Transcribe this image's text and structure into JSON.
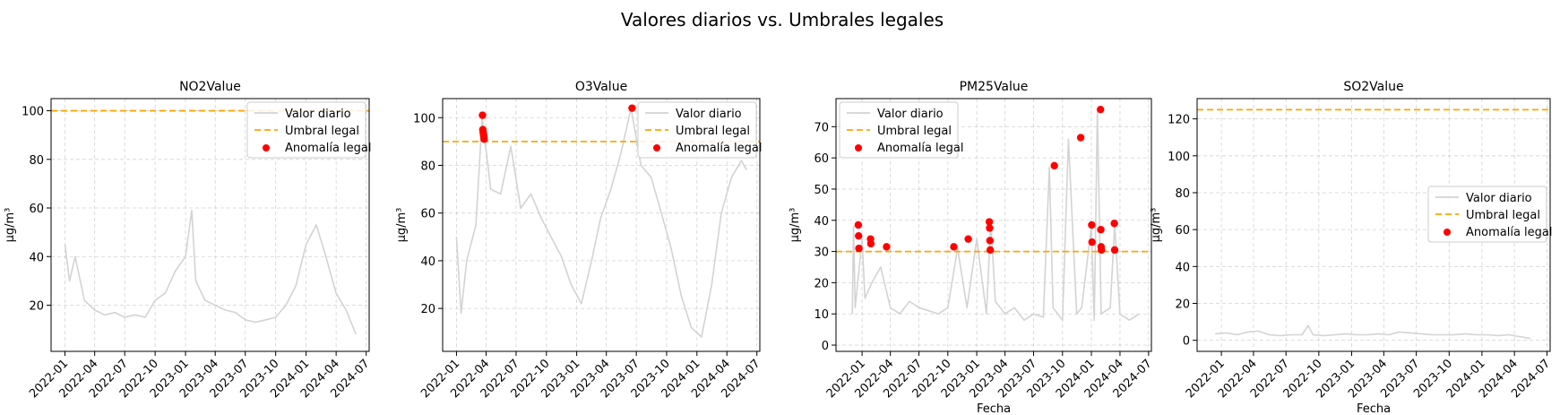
{
  "figure": {
    "suptitle": "Valores diarios vs. Umbrales legales"
  },
  "colors": {
    "series": "#d3d3d3",
    "threshold": "#ffa500",
    "anomaly": "#ff0000",
    "grid": "#b0b0b0",
    "axis": "#000000"
  },
  "x_axis": {
    "ticks": [
      "2022-01",
      "2022-04",
      "2022-07",
      "2022-10",
      "2023-01",
      "2023-04",
      "2023-07",
      "2023-10",
      "2024-01",
      "2024-04",
      "2024-07"
    ],
    "start": "2022-01-01",
    "end": "2024-05-31"
  },
  "chart_data": [
    {
      "type": "line",
      "title": "NO2Value",
      "xlabel": "",
      "ylabel": "µg/m³",
      "ylim": [
        1,
        105
      ],
      "yticks": [
        20,
        40,
        60,
        80,
        100
      ],
      "xlim": [
        "2021-11-20",
        "2024-07-10"
      ],
      "grid": true,
      "legend_position": "upper right",
      "legend": [
        "Valor diario",
        "Umbral legal",
        "Anomalía legal"
      ],
      "threshold": 100,
      "series": [
        {
          "name": "Valor diario",
          "x": [
            "2022-01-01",
            "2022-01-15",
            "2022-02-01",
            "2022-03-01",
            "2022-04-01",
            "2022-05-01",
            "2022-06-01",
            "2022-07-01",
            "2022-08-01",
            "2022-09-01",
            "2022-10-01",
            "2022-11-01",
            "2022-12-01",
            "2023-01-01",
            "2023-01-20",
            "2023-02-01",
            "2023-03-01",
            "2023-04-01",
            "2023-05-01",
            "2023-06-01",
            "2023-07-01",
            "2023-08-01",
            "2023-09-01",
            "2023-10-01",
            "2023-11-01",
            "2023-12-01",
            "2024-01-01",
            "2024-02-01",
            "2024-03-01",
            "2024-04-01",
            "2024-05-01",
            "2024-05-31"
          ],
          "y": [
            45,
            30,
            40,
            22,
            18,
            16,
            17,
            15,
            16,
            15,
            22,
            25,
            34,
            40,
            59,
            30,
            22,
            20,
            18,
            17,
            14,
            13,
            14,
            15,
            20,
            28,
            45,
            53,
            40,
            25,
            18,
            8
          ]
        }
      ],
      "anomalies": []
    },
    {
      "type": "line",
      "title": "O3Value",
      "xlabel": "",
      "ylabel": "µg/m³",
      "ylim": [
        2,
        108
      ],
      "yticks": [
        20,
        40,
        60,
        80,
        100
      ],
      "xlim": [
        "2021-11-20",
        "2024-07-10"
      ],
      "grid": true,
      "legend_position": "upper right",
      "legend": [
        "Valor diario",
        "Umbral legal",
        "Anomalía legal"
      ],
      "threshold": 90,
      "series": [
        {
          "name": "Valor diario",
          "x": [
            "2022-01-01",
            "2022-01-15",
            "2022-02-01",
            "2022-03-01",
            "2022-03-20",
            "2022-04-15",
            "2022-05-15",
            "2022-06-15",
            "2022-07-15",
            "2022-08-15",
            "2022-09-15",
            "2022-10-15",
            "2022-11-15",
            "2022-12-15",
            "2023-01-15",
            "2023-02-15",
            "2023-03-15",
            "2023-04-15",
            "2023-05-15",
            "2023-06-15",
            "2023-07-15",
            "2023-08-15",
            "2023-09-15",
            "2023-10-15",
            "2023-11-15",
            "2023-12-15",
            "2024-01-15",
            "2024-02-15",
            "2024-03-15",
            "2024-04-15",
            "2024-05-15",
            "2024-05-31"
          ],
          "y": [
            50,
            18,
            40,
            55,
            100,
            70,
            68,
            88,
            62,
            68,
            58,
            50,
            42,
            30,
            22,
            40,
            58,
            70,
            85,
            104,
            80,
            75,
            60,
            45,
            25,
            12,
            8,
            30,
            60,
            75,
            82,
            78
          ]
        }
      ],
      "anomalies": [
        {
          "x": "2022-03-21",
          "y": 101
        },
        {
          "x": "2022-03-22",
          "y": 95
        },
        {
          "x": "2022-03-23",
          "y": 94
        },
        {
          "x": "2022-03-24",
          "y": 93
        },
        {
          "x": "2022-03-25",
          "y": 92
        },
        {
          "x": "2022-03-26",
          "y": 91
        },
        {
          "x": "2023-06-18",
          "y": 104
        }
      ]
    },
    {
      "type": "line",
      "title": "PM25Value",
      "xlabel": "Fecha",
      "ylabel": "µg/m³",
      "ylim": [
        -2,
        79
      ],
      "yticks": [
        0,
        10,
        20,
        30,
        40,
        50,
        60,
        70
      ],
      "xlim": [
        "2021-10-10",
        "2024-07-10"
      ],
      "grid": true,
      "legend_position": "upper left",
      "legend": [
        "Valor diario",
        "Umbral legal",
        "Anomalía legal"
      ],
      "threshold": 30,
      "series": [
        {
          "name": "Valor diario",
          "x": [
            "2021-12-01",
            "2021-12-05",
            "2021-12-10",
            "2022-01-01",
            "2022-01-10",
            "2022-02-01",
            "2022-03-01",
            "2022-04-01",
            "2022-05-01",
            "2022-06-01",
            "2022-07-01",
            "2022-08-01",
            "2022-09-01",
            "2022-10-01",
            "2022-11-01",
            "2022-12-01",
            "2023-01-01",
            "2023-02-01",
            "2023-02-15",
            "2023-03-01",
            "2023-04-01",
            "2023-05-01",
            "2023-06-01",
            "2023-07-01",
            "2023-08-01",
            "2023-08-20",
            "2023-09-01",
            "2023-10-01",
            "2023-10-20",
            "2023-11-15",
            "2023-12-01",
            "2024-01-01",
            "2024-01-10",
            "2024-01-20",
            "2024-02-01",
            "2024-03-01",
            "2024-03-15",
            "2024-04-01",
            "2024-05-01",
            "2024-05-31"
          ],
          "y": [
            10,
            38,
            12,
            34,
            15,
            20,
            25,
            12,
            10,
            14,
            12,
            11,
            10,
            12,
            31,
            12,
            34,
            10,
            40,
            14,
            10,
            12,
            8,
            10,
            9,
            57,
            12,
            8,
            66,
            10,
            12,
            38,
            8,
            75,
            10,
            12,
            39,
            10,
            8,
            10
          ]
        }
      ],
      "anomalies": [
        {
          "x": "2021-12-20",
          "y": 38.5
        },
        {
          "x": "2021-12-21",
          "y": 35
        },
        {
          "x": "2021-12-22",
          "y": 31
        },
        {
          "x": "2022-01-28",
          "y": 34
        },
        {
          "x": "2022-01-29",
          "y": 32.5
        },
        {
          "x": "2022-03-20",
          "y": 31.5
        },
        {
          "x": "2022-10-20",
          "y": 31.5
        },
        {
          "x": "2022-12-05",
          "y": 34
        },
        {
          "x": "2023-02-10",
          "y": 39.5
        },
        {
          "x": "2023-02-11",
          "y": 37.5
        },
        {
          "x": "2023-02-12",
          "y": 33.5
        },
        {
          "x": "2023-02-13",
          "y": 30.5
        },
        {
          "x": "2023-09-05",
          "y": 57.5
        },
        {
          "x": "2023-11-28",
          "y": 66.5
        },
        {
          "x": "2024-01-02",
          "y": 38.5
        },
        {
          "x": "2024-01-03",
          "y": 33
        },
        {
          "x": "2024-01-30",
          "y": 75.5
        },
        {
          "x": "2024-01-31",
          "y": 37
        },
        {
          "x": "2024-02-01",
          "y": 31.5
        },
        {
          "x": "2024-02-02",
          "y": 30.5
        },
        {
          "x": "2024-03-14",
          "y": 39
        },
        {
          "x": "2024-03-15",
          "y": 30.5
        }
      ]
    },
    {
      "type": "line",
      "title": "SO2Value",
      "xlabel": "Fecha",
      "ylabel": "µg/m³",
      "ylim": [
        -6,
        131
      ],
      "yticks": [
        0,
        20,
        40,
        60,
        80,
        100,
        120
      ],
      "xlim": [
        "2021-10-25",
        "2024-07-10"
      ],
      "grid": true,
      "legend_position": "center right",
      "legend": [
        "Valor diario",
        "Umbral legal",
        "Anomalía legal"
      ],
      "threshold": 125,
      "series": [
        {
          "name": "Valor diario",
          "x": [
            "2021-12-15",
            "2022-01-15",
            "2022-02-15",
            "2022-03-15",
            "2022-04-15",
            "2022-05-15",
            "2022-06-15",
            "2022-07-15",
            "2022-08-15",
            "2022-09-01",
            "2022-09-15",
            "2022-10-15",
            "2022-11-15",
            "2022-12-15",
            "2023-01-15",
            "2023-02-15",
            "2023-03-15",
            "2023-04-15",
            "2023-05-15",
            "2023-06-15",
            "2023-07-15",
            "2023-08-15",
            "2023-09-15",
            "2023-10-15",
            "2023-11-15",
            "2023-12-15",
            "2024-01-15",
            "2024-02-15",
            "2024-03-15",
            "2024-04-15",
            "2024-05-15"
          ],
          "y": [
            3.5,
            4,
            3,
            4.5,
            5,
            3,
            2.5,
            3,
            3,
            8,
            3,
            2.5,
            3,
            3.5,
            3,
            3,
            3.5,
            3,
            4.5,
            4,
            3.5,
            3,
            3,
            3,
            3.5,
            3,
            3,
            2.5,
            3,
            2,
            1
          ]
        }
      ],
      "anomalies": []
    }
  ]
}
